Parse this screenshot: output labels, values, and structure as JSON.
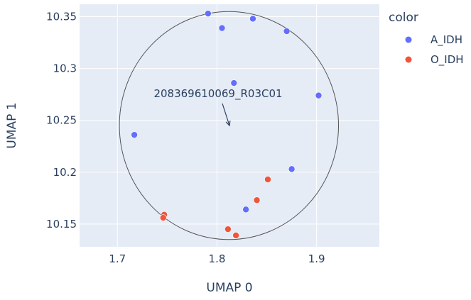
{
  "chart_data": {
    "type": "scatter",
    "xlabel": "UMAP 0",
    "ylabel": "UMAP 1",
    "xlim": [
      1.662,
      1.963
    ],
    "ylim": [
      10.128,
      10.362
    ],
    "x_ticks": [
      1.7,
      1.8,
      1.9
    ],
    "x_tick_labels": [
      "1.7",
      "1.8",
      "1.9"
    ],
    "y_ticks": [
      10.15,
      10.2,
      10.25,
      10.3,
      10.35
    ],
    "y_tick_labels": [
      "10.15",
      "10.2",
      "10.25",
      "10.3",
      "10.35"
    ],
    "grid": true,
    "legend_title": "color",
    "legend_position": "right",
    "series": [
      {
        "name": "A_IDH",
        "color": "#636efa",
        "points": [
          [
            1.791,
            10.353
          ],
          [
            1.805,
            10.339
          ],
          [
            1.836,
            10.348
          ],
          [
            1.87,
            10.336
          ],
          [
            1.817,
            10.286
          ],
          [
            1.902,
            10.274
          ],
          [
            1.717,
            10.236
          ],
          [
            1.875,
            10.203
          ],
          [
            1.829,
            10.164
          ]
        ]
      },
      {
        "name": "O_IDH",
        "color": "#ef553b",
        "points": [
          [
            1.747,
            10.159
          ],
          [
            1.746,
            10.156
          ],
          [
            1.851,
            10.193
          ],
          [
            1.84,
            10.173
          ],
          [
            1.811,
            10.145
          ],
          [
            1.819,
            10.139
          ]
        ]
      }
    ],
    "annotation": {
      "text": "208369610069_R03C01",
      "x": 1.8125,
      "y": 10.245,
      "shape": "circle",
      "circle_center": [
        1.812,
        10.245
      ],
      "circle_radius_x": 0.11,
      "circle_radius_y": 0.11
    },
    "colors": {
      "plot_bg": "#e5ecf6",
      "grid": "#ffffff",
      "text": "#2a3f5f",
      "circle": "#555555"
    }
  }
}
